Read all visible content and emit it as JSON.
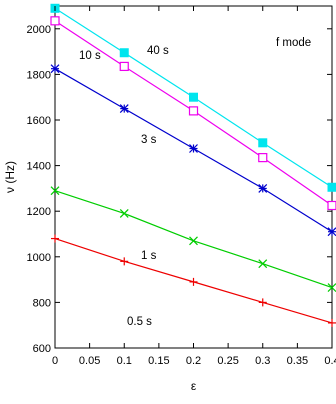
{
  "chart_data": {
    "type": "line",
    "title": "",
    "xlabel": "ε",
    "ylabel": "ν (Hz)",
    "xlim": [
      0,
      0.4
    ],
    "ylim": [
      600,
      2100
    ],
    "x_ticks": [
      0,
      0.05,
      0.1,
      0.15,
      0.2,
      0.25,
      0.3,
      0.35,
      0.4
    ],
    "x_tick_labels": [
      "0",
      "0.05",
      "0.1",
      "0.15",
      "0.2",
      "0.25",
      "0.3",
      "0.35",
      "0.4"
    ],
    "y_ticks": [
      600,
      800,
      1000,
      1200,
      1400,
      1600,
      1800,
      2000
    ],
    "y_tick_labels": [
      "600",
      "800",
      "1000",
      "1200",
      "1400",
      "1600",
      "1800",
      "2000"
    ],
    "grid": false,
    "legend": "none",
    "annotation": "f mode",
    "series": [
      {
        "name": "40 s",
        "color": "#00e5ee",
        "marker": "filled-square",
        "x": [
          0,
          0.1,
          0.2,
          0.3,
          0.4
        ],
        "y": [
          2090,
          1895,
          1700,
          1500,
          1305
        ]
      },
      {
        "name": "10 s",
        "color": "#ee00ee",
        "marker": "open-square",
        "x": [
          0,
          0.1,
          0.2,
          0.3,
          0.4
        ],
        "y": [
          2035,
          1835,
          1640,
          1435,
          1225
        ]
      },
      {
        "name": "3 s",
        "color": "#0000cd",
        "marker": "asterisk",
        "x": [
          0,
          0.1,
          0.2,
          0.3,
          0.4
        ],
        "y": [
          1825,
          1650,
          1475,
          1300,
          1110
        ]
      },
      {
        "name": "1 s",
        "color": "#00cd00",
        "marker": "x",
        "x": [
          0,
          0.1,
          0.2,
          0.3,
          0.4
        ],
        "y": [
          1290,
          1190,
          1070,
          970,
          865
        ]
      },
      {
        "name": "0.5 s",
        "color": "#ee0000",
        "marker": "plus",
        "x": [
          0,
          0.1,
          0.2,
          0.3,
          0.4
        ],
        "y": [
          1080,
          980,
          890,
          800,
          710
        ]
      }
    ]
  }
}
